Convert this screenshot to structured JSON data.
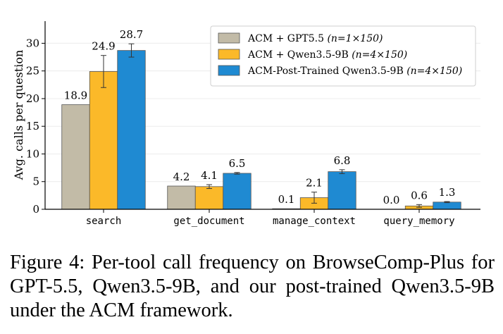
{
  "chart_data": {
    "type": "bar",
    "categories": [
      "search",
      "get_document",
      "manage_context",
      "query_memory"
    ],
    "ylabel": "Avg. calls per question",
    "ylim": [
      0,
      34
    ],
    "yticks": [
      0,
      5,
      10,
      15,
      20,
      25,
      30
    ],
    "grid": "horizontal",
    "legend_position": "top-right",
    "series": [
      {
        "name": "ACM + GPT5.5",
        "n_label": "(n=1×150)",
        "color": "#c2bba7",
        "values": [
          18.9,
          4.2,
          0.1,
          0.0
        ],
        "value_labels": [
          "18.9",
          "4.2",
          "0.1",
          "0.0"
        ],
        "errors": [
          0,
          0,
          0,
          0
        ]
      },
      {
        "name": "ACM + Qwen3.5-9B",
        "n_label": "(n=4×150)",
        "color": "#fbb929",
        "values": [
          24.9,
          4.1,
          2.1,
          0.6
        ],
        "value_labels": [
          "24.9",
          "4.1",
          "2.1",
          "0.6"
        ],
        "errors": [
          2.9,
          0.35,
          1.0,
          0.25
        ]
      },
      {
        "name": "ACM-Post-Trained Qwen3.5-9B",
        "n_label": "(n=4×150)",
        "color": "#1f8ad2",
        "values": [
          28.7,
          6.5,
          6.8,
          1.3
        ],
        "value_labels": [
          "28.7",
          "6.5",
          "6.8",
          "1.3"
        ],
        "errors": [
          1.2,
          0.15,
          0.35,
          0.1
        ]
      }
    ]
  },
  "caption": "Figure 4: Per-tool call frequency on BrowseComp-Plus for GPT-5.5, Qwen3.5-9B, and our post-trained Qwen3.5-9B under the ACM framework."
}
